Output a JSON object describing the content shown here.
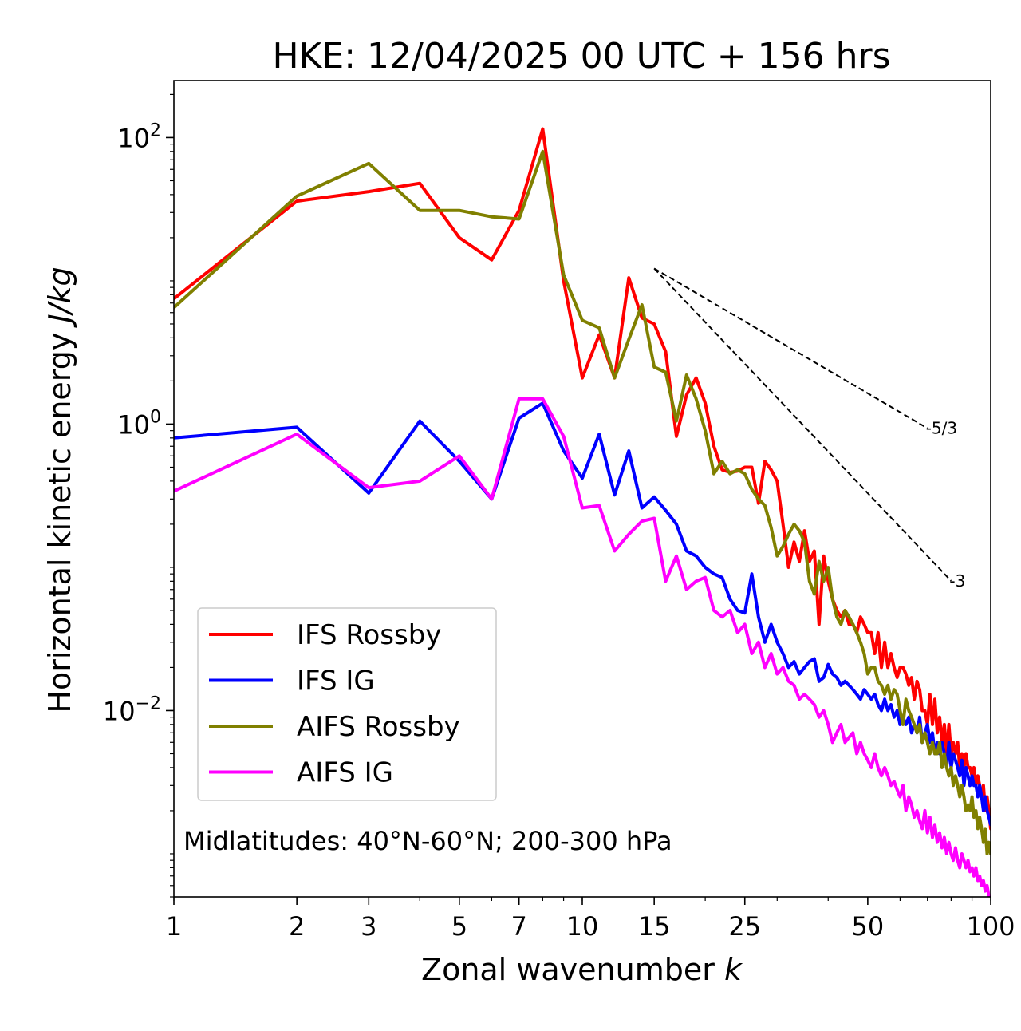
{
  "chart_data": {
    "type": "line",
    "title": "HKE: 12/04/2025 00 UTC + 156 hrs",
    "xlabel": "Zonal wavenumber k",
    "xlabel_main": "Zonal wavenumber ",
    "xlabel_var": "k",
    "ylabel": "Horizontal kinetic energy J/kg",
    "ylabel_main": "Horizontal kinetic energy ",
    "ylabel_var": "J/kg",
    "xscale": "log",
    "yscale": "log",
    "xlim": [
      1,
      100
    ],
    "ylim": [
      0.0005,
      250
    ],
    "x_ticks": [
      1,
      2,
      3,
      5,
      7,
      10,
      15,
      25,
      50,
      100
    ],
    "x_tick_labels": [
      "1",
      "2",
      "3",
      "5",
      "7",
      "10",
      "15",
      "25",
      "50",
      "100"
    ],
    "y_ticks": [
      {
        "value": 100,
        "base": "10",
        "exp": "2"
      },
      {
        "value": 1,
        "base": "10",
        "exp": "0"
      },
      {
        "value": 0.01,
        "base": "10",
        "exp": "−2"
      }
    ],
    "grid": false,
    "legend_position": "lower-left",
    "annotation": "Midlatitudes: 40°N-60°N; 200-300 hPa",
    "reference_slopes": [
      {
        "label": "-5/3",
        "slope": -1.6667,
        "x_start": 15,
        "x_end": 70,
        "y_start": 12.2
      },
      {
        "label": "-3",
        "slope": -3,
        "x_start": 15,
        "x_end": 80,
        "y_start": 12.2
      }
    ],
    "x": [
      1,
      2,
      3,
      4,
      5,
      6,
      7,
      8,
      9,
      10,
      11,
      12,
      13,
      14,
      15,
      16,
      17,
      18,
      19,
      20,
      21,
      22,
      23,
      24,
      25,
      26,
      27,
      28,
      29,
      30,
      31,
      32,
      33,
      34,
      35,
      36,
      37,
      38,
      39,
      40,
      41,
      42,
      43,
      44,
      45,
      46,
      47,
      48,
      49,
      50,
      51,
      52,
      53,
      54,
      55,
      56,
      57,
      58,
      59,
      60,
      61,
      62,
      63,
      64,
      65,
      66,
      67,
      68,
      69,
      70,
      71,
      72,
      73,
      74,
      75,
      76,
      77,
      78,
      79,
      80,
      81,
      82,
      83,
      84,
      85,
      86,
      87,
      88,
      89,
      90,
      91,
      92,
      93,
      94,
      95,
      96,
      97,
      98,
      99,
      100
    ],
    "series": [
      {
        "name": "IFS Rossby",
        "color": "#ff0000",
        "values": [
          7.5,
          36,
          42,
          48,
          20,
          14,
          31,
          115,
          10,
          2.1,
          4.2,
          2.1,
          10.5,
          5.5,
          5.0,
          3.2,
          0.82,
          1.6,
          2.1,
          1.4,
          0.7,
          0.48,
          0.46,
          0.47,
          0.5,
          0.5,
          0.28,
          0.55,
          0.48,
          0.4,
          0.2,
          0.1,
          0.15,
          0.11,
          0.18,
          0.11,
          0.13,
          0.04,
          0.12,
          0.08,
          0.06,
          0.05,
          0.045,
          0.05,
          0.04,
          0.04,
          0.035,
          0.045,
          0.04,
          0.035,
          0.035,
          0.025,
          0.035,
          0.02,
          0.03,
          0.02,
          0.025,
          0.02,
          0.017,
          0.02,
          0.02,
          0.018,
          0.015,
          0.017,
          0.012,
          0.016,
          0.014,
          0.01,
          0.01,
          0.008,
          0.013,
          0.008,
          0.012,
          0.007,
          0.009,
          0.006,
          0.008,
          0.005,
          0.008,
          0.005,
          0.006,
          0.005,
          0.006,
          0.004,
          0.005,
          0.004,
          0.005,
          0.004,
          0.004,
          0.0035,
          0.004,
          0.003,
          0.0035,
          0.003,
          0.0025,
          0.003,
          0.002,
          0.0025,
          0.002,
          0.0015
        ]
      },
      {
        "name": "IFS IG",
        "color": "#0000ff",
        "values": [
          0.8,
          0.95,
          0.33,
          1.05,
          0.55,
          0.3,
          1.1,
          1.4,
          0.65,
          0.42,
          0.85,
          0.32,
          0.65,
          0.26,
          0.31,
          0.25,
          0.2,
          0.13,
          0.12,
          0.1,
          0.09,
          0.085,
          0.06,
          0.05,
          0.048,
          0.09,
          0.045,
          0.03,
          0.04,
          0.03,
          0.025,
          0.02,
          0.022,
          0.018,
          0.02,
          0.022,
          0.023,
          0.016,
          0.017,
          0.021,
          0.018,
          0.017,
          0.015,
          0.016,
          0.015,
          0.014,
          0.013,
          0.012,
          0.014,
          0.013,
          0.012,
          0.013,
          0.011,
          0.01,
          0.012,
          0.01,
          0.011,
          0.009,
          0.01,
          0.008,
          0.009,
          0.008,
          0.009,
          0.007,
          0.008,
          0.007,
          0.009,
          0.006,
          0.007,
          0.008,
          0.006,
          0.007,
          0.005,
          0.006,
          0.005,
          0.006,
          0.005,
          0.004,
          0.006,
          0.004,
          0.005,
          0.0045,
          0.004,
          0.0035,
          0.0045,
          0.003,
          0.004,
          0.0035,
          0.003,
          0.0035,
          0.003,
          0.003,
          0.0025,
          0.003,
          0.0025,
          0.002,
          0.0025,
          0.002,
          0.0018,
          0.0016
        ]
      },
      {
        "name": "AIFS Rossby",
        "color": "#808000",
        "values": [
          6.5,
          39,
          66,
          31,
          31,
          28,
          27,
          80,
          11,
          5.3,
          4.7,
          2.1,
          3.9,
          6.8,
          2.5,
          2.3,
          1.05,
          2.2,
          1.5,
          0.9,
          0.45,
          0.55,
          0.45,
          0.48,
          0.45,
          0.35,
          0.3,
          0.27,
          0.19,
          0.12,
          0.14,
          0.17,
          0.2,
          0.18,
          0.15,
          0.08,
          0.065,
          0.11,
          0.08,
          0.1,
          0.06,
          0.045,
          0.04,
          0.05,
          0.045,
          0.04,
          0.035,
          0.03,
          0.025,
          0.018,
          0.02,
          0.02,
          0.016,
          0.015,
          0.013,
          0.015,
          0.012,
          0.014,
          0.013,
          0.01,
          0.008,
          0.012,
          0.01,
          0.009,
          0.008,
          0.007,
          0.008,
          0.006,
          0.007,
          0.006,
          0.005,
          0.006,
          0.005,
          0.005,
          0.006,
          0.004,
          0.005,
          0.004,
          0.0035,
          0.004,
          0.003,
          0.0035,
          0.003,
          0.0025,
          0.003,
          0.0025,
          0.002,
          0.0022,
          0.002,
          0.0025,
          0.0018,
          0.002,
          0.0015,
          0.0018,
          0.0015,
          0.0012,
          0.0015,
          0.001,
          0.0012,
          0.001
        ]
      },
      {
        "name": "AIFS IG",
        "color": "#ff00ff",
        "values": [
          0.34,
          0.85,
          0.36,
          0.4,
          0.6,
          0.3,
          1.5,
          1.5,
          0.82,
          0.26,
          0.27,
          0.13,
          0.17,
          0.21,
          0.22,
          0.08,
          0.12,
          0.07,
          0.08,
          0.085,
          0.05,
          0.045,
          0.05,
          0.035,
          0.04,
          0.025,
          0.03,
          0.02,
          0.025,
          0.018,
          0.02,
          0.016,
          0.015,
          0.012,
          0.013,
          0.012,
          0.011,
          0.009,
          0.01,
          0.008,
          0.006,
          0.007,
          0.008,
          0.006,
          0.0065,
          0.007,
          0.005,
          0.006,
          0.005,
          0.0045,
          0.004,
          0.005,
          0.004,
          0.0035,
          0.004,
          0.0035,
          0.003,
          0.0032,
          0.0028,
          0.0025,
          0.003,
          0.002,
          0.0025,
          0.0022,
          0.0018,
          0.002,
          0.0017,
          0.0015,
          0.002,
          0.0014,
          0.0018,
          0.0013,
          0.0016,
          0.0012,
          0.0014,
          0.0011,
          0.0013,
          0.001,
          0.0012,
          0.001,
          0.0009,
          0.0011,
          0.0009,
          0.0008,
          0.001,
          0.0009,
          0.0008,
          0.0009,
          0.00075,
          0.0008,
          0.0007,
          0.0008,
          0.00065,
          0.0007,
          0.0006,
          0.00065,
          0.00055,
          0.0006,
          0.0005,
          0.00045
        ]
      }
    ]
  }
}
